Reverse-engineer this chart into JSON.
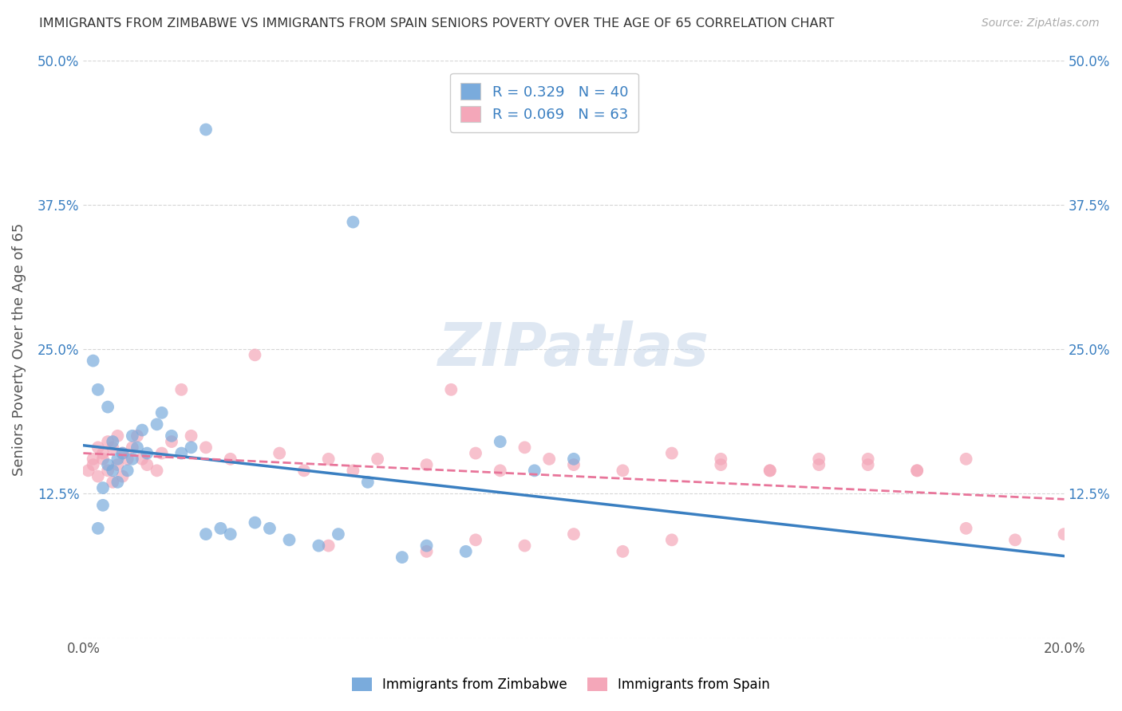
{
  "title": "IMMIGRANTS FROM ZIMBABWE VS IMMIGRANTS FROM SPAIN SENIORS POVERTY OVER THE AGE OF 65 CORRELATION CHART",
  "source": "Source: ZipAtlas.com",
  "ylabel": "Seniors Poverty Over the Age of 65",
  "xlim": [
    0.0,
    0.2
  ],
  "ylim": [
    0.0,
    0.5
  ],
  "legend_R1": "R = 0.329",
  "legend_N1": "N = 40",
  "legend_R2": "R = 0.069",
  "legend_N2": "N = 63",
  "color_zimbabwe": "#7aabdc",
  "color_spain": "#f4a7b9",
  "line_color_zimbabwe": "#3a7fc1",
  "line_color_spain": "#e8759a",
  "watermark": "ZIPatlas",
  "background_color": "#ffffff",
  "zimbabwe_x": [
    0.003,
    0.004,
    0.005,
    0.005,
    0.006,
    0.006,
    0.007,
    0.007,
    0.008,
    0.009,
    0.01,
    0.01,
    0.011,
    0.012,
    0.013,
    0.015,
    0.016,
    0.018,
    0.02,
    0.022,
    0.025,
    0.028,
    0.03,
    0.035,
    0.038,
    0.042,
    0.048,
    0.052,
    0.058,
    0.065,
    0.07,
    0.078,
    0.085,
    0.092,
    0.1,
    0.002,
    0.003,
    0.004,
    0.025,
    0.055
  ],
  "zimbabwe_y": [
    0.215,
    0.13,
    0.15,
    0.2,
    0.145,
    0.17,
    0.155,
    0.135,
    0.16,
    0.145,
    0.155,
    0.175,
    0.165,
    0.18,
    0.16,
    0.185,
    0.195,
    0.175,
    0.16,
    0.165,
    0.09,
    0.095,
    0.09,
    0.1,
    0.095,
    0.085,
    0.08,
    0.09,
    0.135,
    0.07,
    0.08,
    0.075,
    0.17,
    0.145,
    0.155,
    0.24,
    0.095,
    0.115,
    0.44,
    0.36
  ],
  "spain_x": [
    0.001,
    0.002,
    0.002,
    0.003,
    0.003,
    0.004,
    0.004,
    0.005,
    0.005,
    0.006,
    0.006,
    0.007,
    0.007,
    0.008,
    0.008,
    0.009,
    0.01,
    0.011,
    0.012,
    0.013,
    0.015,
    0.016,
    0.018,
    0.02,
    0.022,
    0.025,
    0.03,
    0.035,
    0.04,
    0.045,
    0.05,
    0.055,
    0.06,
    0.07,
    0.075,
    0.08,
    0.085,
    0.09,
    0.095,
    0.1,
    0.11,
    0.12,
    0.13,
    0.14,
    0.15,
    0.16,
    0.17,
    0.18,
    0.19,
    0.2,
    0.05,
    0.07,
    0.08,
    0.09,
    0.1,
    0.11,
    0.12,
    0.13,
    0.14,
    0.15,
    0.16,
    0.17,
    0.18
  ],
  "spain_y": [
    0.145,
    0.155,
    0.15,
    0.14,
    0.165,
    0.155,
    0.16,
    0.145,
    0.17,
    0.135,
    0.165,
    0.15,
    0.175,
    0.14,
    0.16,
    0.155,
    0.165,
    0.175,
    0.155,
    0.15,
    0.145,
    0.16,
    0.17,
    0.215,
    0.175,
    0.165,
    0.155,
    0.245,
    0.16,
    0.145,
    0.155,
    0.145,
    0.155,
    0.15,
    0.215,
    0.16,
    0.145,
    0.165,
    0.155,
    0.15,
    0.145,
    0.16,
    0.155,
    0.145,
    0.15,
    0.155,
    0.145,
    0.095,
    0.085,
    0.09,
    0.08,
    0.075,
    0.085,
    0.08,
    0.09,
    0.075,
    0.085,
    0.15,
    0.145,
    0.155,
    0.15,
    0.145,
    0.155
  ]
}
